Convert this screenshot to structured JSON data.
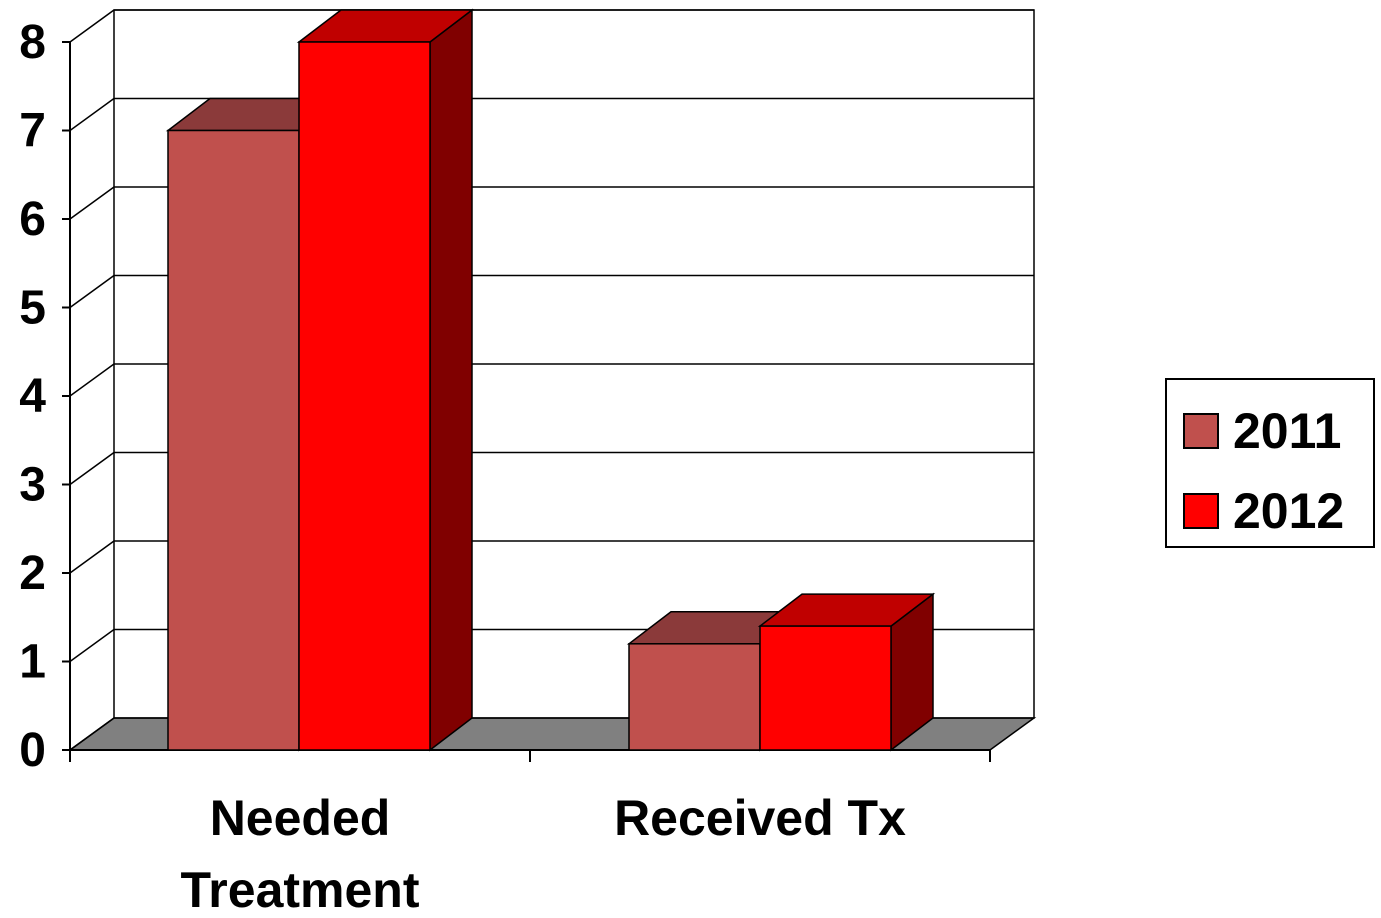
{
  "chart_data": {
    "type": "bar",
    "style": "3d-clustered-column",
    "title": "",
    "xlabel": "",
    "ylabel": "",
    "categories": [
      "Needed Treatment",
      "Received Tx"
    ],
    "category_lines": [
      [
        "Needed",
        "Treatment"
      ],
      [
        "Received Tx"
      ]
    ],
    "series": [
      {
        "name": "2011",
        "values": [
          7,
          1.2
        ],
        "color": "#C0504D",
        "top_color": "#8B3A3A",
        "side_color": "#7A2E2E"
      },
      {
        "name": "2012",
        "values": [
          8,
          1.4
        ],
        "color": "#FF0000",
        "top_color": "#C00000",
        "side_color": "#800000"
      }
    ],
    "ylim": [
      0,
      8
    ],
    "yticks": [
      "0",
      "1",
      "2",
      "3",
      "4",
      "5",
      "6",
      "7",
      "8"
    ],
    "grid": true,
    "floor_color": "#808080",
    "legend": "right"
  },
  "legend": {
    "items": [
      {
        "label": "2011",
        "color": "#C0504D"
      },
      {
        "label": "2012",
        "color": "#FF0000"
      }
    ]
  }
}
